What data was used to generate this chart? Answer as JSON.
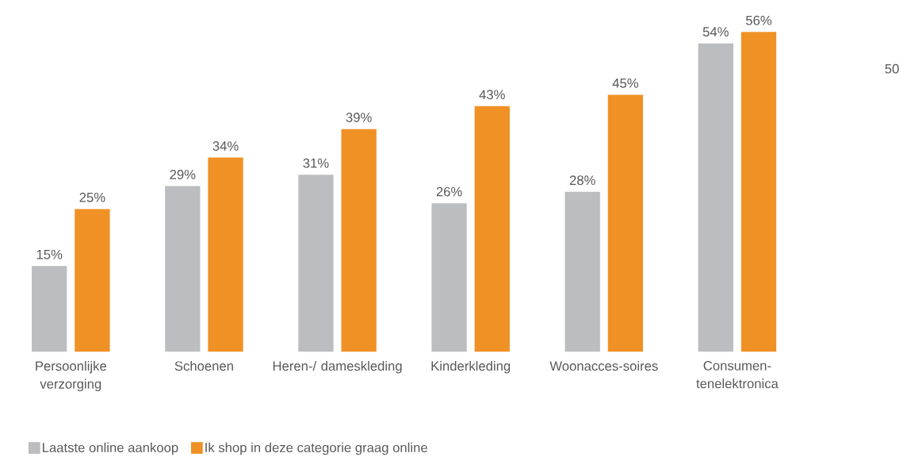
{
  "chart_data": {
    "type": "bar",
    "categories": [
      "Persoonlijke verzorging",
      "Schoenen",
      "Heren-/ dameskleding",
      "Kinderkleding",
      "Woonacces-soires",
      "Consumen-tenelektronica"
    ],
    "series": [
      {
        "name": "Laatste online aankoop",
        "color": "#bcbdc0",
        "values": [
          15,
          29,
          31,
          26,
          28,
          54
        ],
        "value_labels": [
          "15%",
          "29%",
          "31%",
          "26%",
          "28%",
          "54%"
        ]
      },
      {
        "name": "Ik shop in deze categorie graag online",
        "color": "#f09125",
        "values": [
          25,
          34,
          39,
          43,
          45,
          56
        ],
        "value_labels": [
          "25%",
          "34%",
          "39%",
          "43%",
          "45%",
          "56%"
        ]
      }
    ],
    "legend": "bottom left",
    "annotations": [
      "50"
    ]
  }
}
